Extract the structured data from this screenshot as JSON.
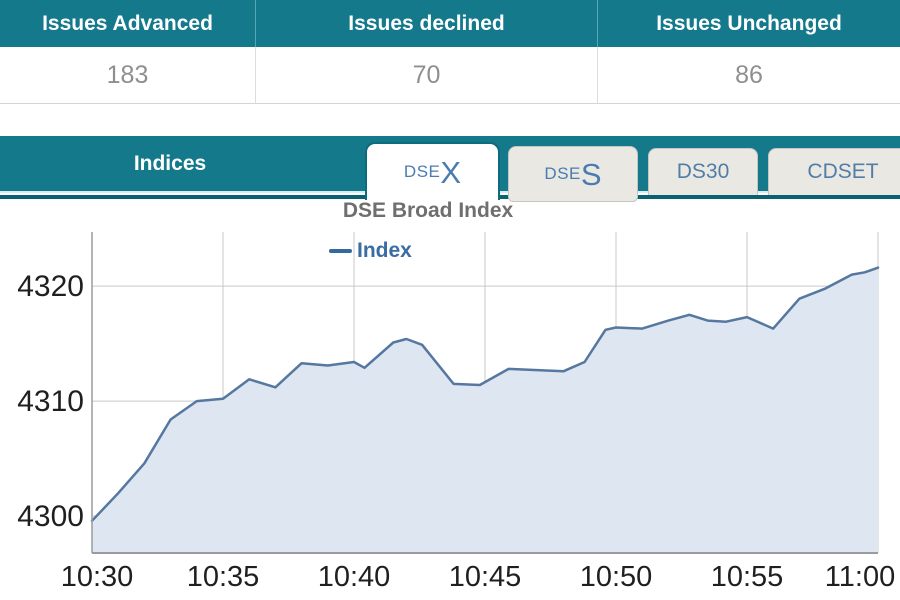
{
  "market_table": {
    "columns": [
      {
        "label": "Issues Advanced",
        "value": "183"
      },
      {
        "label": "Issues declined",
        "value": "70"
      },
      {
        "label": "Issues Unchanged",
        "value": "86"
      }
    ]
  },
  "indices_bar": {
    "title": "Indices",
    "tabs": [
      {
        "label_small": "DSE",
        "label_big": "X",
        "active": true
      },
      {
        "label_small": "DSE",
        "label_big": "S",
        "active": false
      },
      {
        "label": "DS30",
        "active": false
      },
      {
        "label": "CDSET",
        "active": false
      }
    ]
  },
  "chart_data": {
    "type": "area",
    "title": "DSE Broad Index",
    "legend": [
      "Index"
    ],
    "series_name": "Index",
    "x_unit": "minutes after 10:30",
    "x": [
      0,
      1,
      2,
      3,
      4,
      5,
      6,
      7,
      8,
      9,
      10,
      10.4,
      11.5,
      12,
      12.6,
      13.8,
      14.8,
      15.9,
      17,
      18,
      18.8,
      19.6,
      20,
      21,
      22,
      22.8,
      23.5,
      24.2,
      25,
      26,
      27,
      28,
      29,
      29.5,
      30
    ],
    "values": [
      4299.6,
      4302.0,
      4304.6,
      4308.4,
      4310.0,
      4310.2,
      4311.9,
      4311.2,
      4313.3,
      4313.1,
      4313.4,
      4312.9,
      4315.1,
      4315.4,
      4314.9,
      4311.5,
      4311.4,
      4312.8,
      4312.7,
      4312.6,
      4313.4,
      4316.2,
      4316.4,
      4316.3,
      4317.0,
      4317.5,
      4317.0,
      4316.9,
      4317.3,
      4316.3,
      4318.9,
      4319.8,
      4321.0,
      4321.2,
      4321.6
    ],
    "x_tick_labels": [
      "10:30",
      "10:35",
      "10:40",
      "10:45",
      "10:50",
      "10:55",
      "11:00"
    ],
    "x_tick_minutes": [
      0,
      5,
      10,
      15,
      20,
      25,
      30
    ],
    "y_ticks": [
      4300,
      4310,
      4320
    ],
    "ylim": [
      4296.8,
      4324.7
    ],
    "xlim_minutes": [
      0,
      30
    ],
    "grid": true,
    "legend_position": "top",
    "colors": {
      "line": "#56779f",
      "fill": "#dee7f1",
      "grid": "#c9c9c9",
      "axis": "#9b9b9b",
      "tick_text": "#1f1f1f"
    }
  }
}
